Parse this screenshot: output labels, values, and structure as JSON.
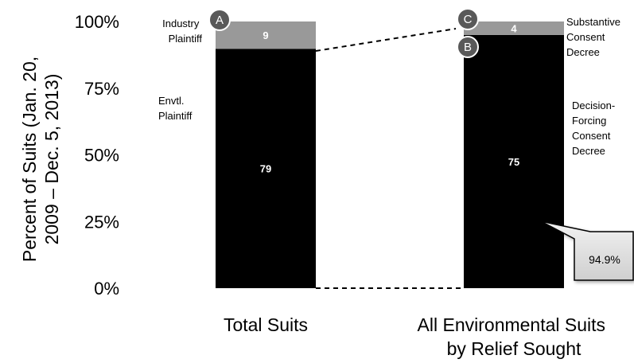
{
  "chart_data": {
    "type": "bar",
    "stacked": true,
    "categories": [
      "Total Suits",
      "All Environmental Suits by Relief Sought"
    ],
    "series": [
      {
        "values": [
          79,
          75
        ],
        "color": "#000000",
        "value_text_color": "#ffffff"
      },
      {
        "values": [
          9,
          4
        ],
        "color": "#999999",
        "value_text_color": "#ffffff"
      }
    ],
    "scale_max": [
      88,
      79
    ],
    "ylim": [
      0,
      100
    ],
    "yticks": [
      "0%",
      "25%",
      "50%",
      "75%",
      "100%"
    ],
    "ylabel_lines": [
      "Percent of Suits (Jan. 20,",
      "2009 – Dec. 5, 2013)"
    ],
    "category_label_lines": [
      [
        "Total Suits"
      ],
      [
        "All Environmental Suits",
        "by Relief Sought"
      ]
    ],
    "annotations": {
      "industry_plaintiff": [
        "Industry",
        "Plaintiff"
      ],
      "envtl_plaintiff": [
        "Envtl.",
        "Plaintiff"
      ],
      "substantive_consent_decree": [
        "Substantive",
        "Consent",
        "Decree"
      ],
      "decision_forcing_consent_decree": [
        "Decision-",
        "Forcing",
        "Consent",
        "Decree"
      ],
      "marker_a": "A",
      "marker_b": "B",
      "marker_c": "C",
      "callout": "94.9%"
    },
    "grid": false,
    "legend": "none"
  }
}
